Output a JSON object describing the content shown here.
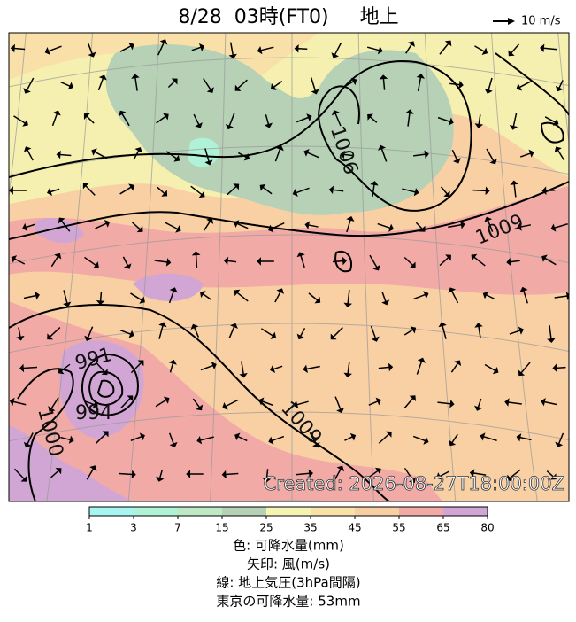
{
  "header": {
    "title": "8/28  03時(FT0)     地上",
    "scale": "10 m/s"
  },
  "map": {
    "contour_labels": [
      "1006",
      "1009",
      "1009",
      "994",
      "991",
      "1000"
    ],
    "created": "Created: 2026-08-27T18:00:00Z"
  },
  "colorbar": {
    "ticks": [
      1,
      3,
      7,
      15,
      25,
      35,
      45,
      55,
      65,
      80
    ],
    "colors": [
      "#a8f4f0",
      "#b0f2d8",
      "#bfe8c4",
      "#b6d1b6",
      "#f6f4b2",
      "#f8e2a8",
      "#f8cfa2",
      "#f2aaa6",
      "#d2a6d4"
    ]
  },
  "legend": [
    "色: 可降水量(mm)",
    "矢印: 風(m/s)",
    "線: 地上気圧(3hPa間隔)",
    "東京の可降水量: 53mm"
  ]
}
